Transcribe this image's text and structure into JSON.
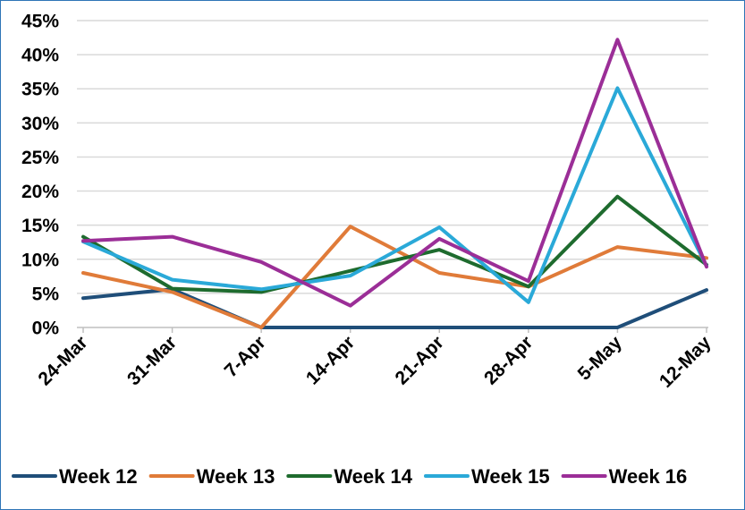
{
  "chart_data": {
    "type": "line",
    "title": "",
    "xlabel": "",
    "ylabel": "",
    "categories": [
      "24-Mar",
      "31-Mar",
      "7-Apr",
      "14-Apr",
      "21-Apr",
      "28-Apr",
      "5-May",
      "12-May"
    ],
    "y_ticks": [
      "0%",
      "5%",
      "10%",
      "15%",
      "20%",
      "25%",
      "30%",
      "35%",
      "40%",
      "45%"
    ],
    "ylim": [
      0,
      45
    ],
    "y_unit": "percent",
    "grid": true,
    "legend_position": "bottom",
    "series": [
      {
        "name": "Week 12",
        "color": "#1f4e79",
        "values": [
          4.3,
          5.6,
          0,
          0,
          0,
          0,
          0,
          5.5
        ]
      },
      {
        "name": "Week 13",
        "color": "#e07b39",
        "values": [
          8.0,
          5.2,
          0,
          14.8,
          8.0,
          6.0,
          11.8,
          10.2
        ]
      },
      {
        "name": "Week 14",
        "color": "#1e6b2e",
        "values": [
          13.3,
          5.7,
          5.2,
          8.3,
          11.4,
          6.0,
          19.2,
          9.2
        ]
      },
      {
        "name": "Week 15",
        "color": "#2aa9d8",
        "values": [
          12.6,
          7.0,
          5.6,
          7.6,
          14.7,
          3.7,
          35.1,
          9.0
        ]
      },
      {
        "name": "Week 16",
        "color": "#9b2e97",
        "values": [
          12.7,
          13.3,
          9.6,
          3.2,
          13.0,
          6.8,
          42.2,
          8.9
        ]
      }
    ]
  }
}
